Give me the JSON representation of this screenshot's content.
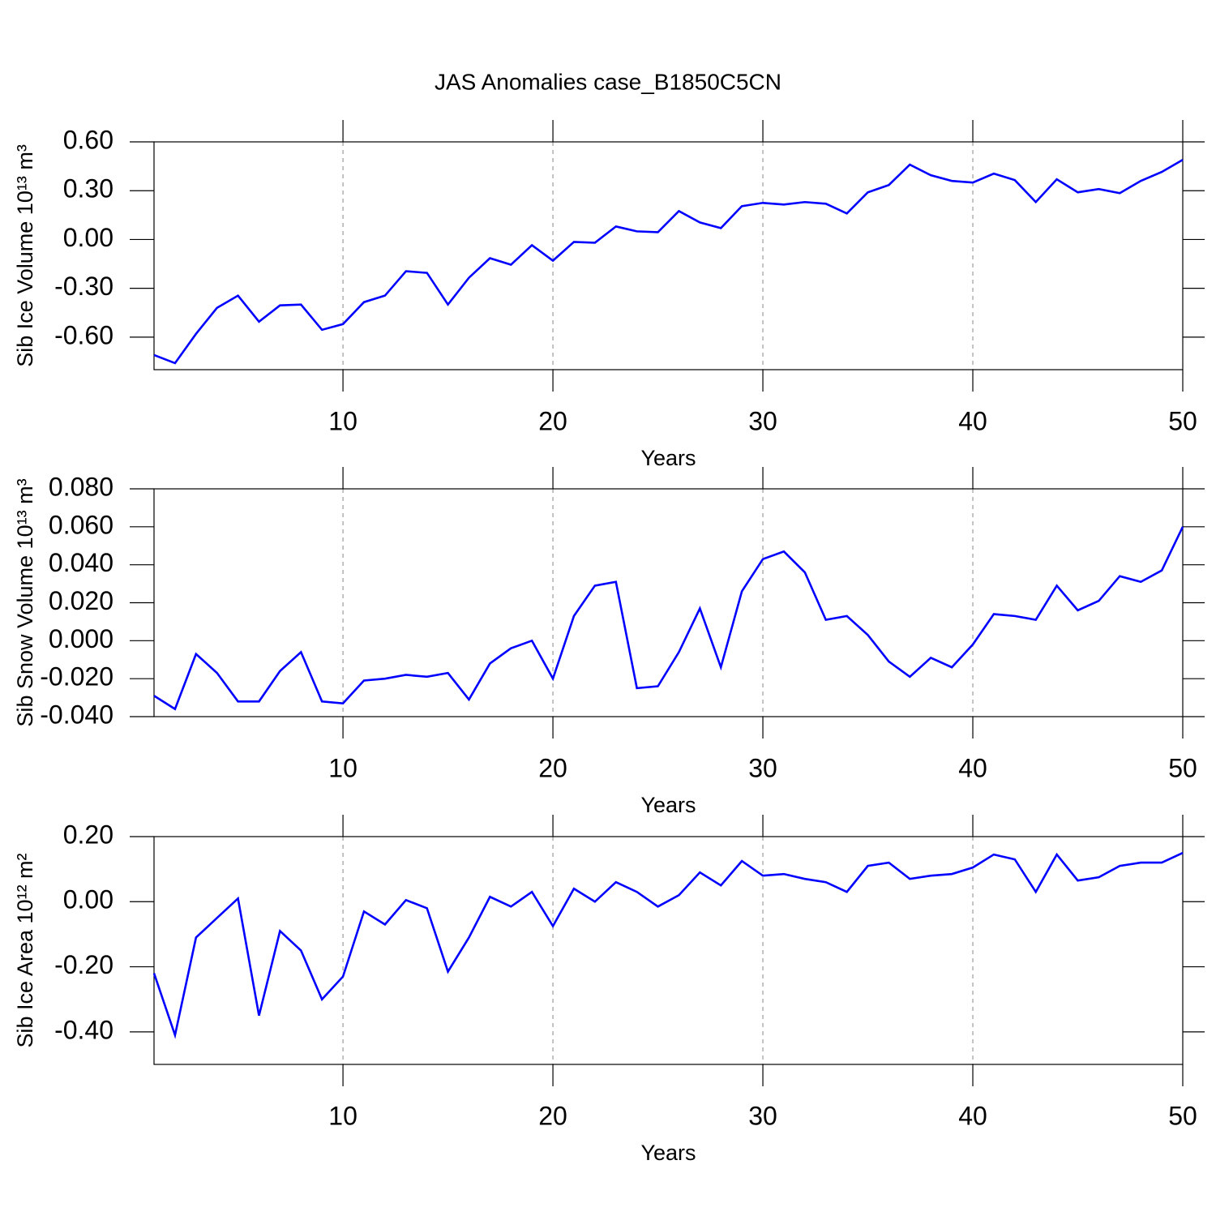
{
  "chart_data": [
    {
      "type": "line",
      "title": "JAS Anomalies case_B1850C5CN",
      "xlabel": "Years",
      "ylabel": "Sib Ice Volume 10¹³ m³",
      "x": [
        1,
        2,
        3,
        4,
        5,
        6,
        7,
        8,
        9,
        10,
        11,
        12,
        13,
        14,
        15,
        16,
        17,
        18,
        19,
        20,
        21,
        22,
        23,
        24,
        25,
        26,
        27,
        28,
        29,
        30,
        31,
        32,
        33,
        34,
        35,
        36,
        37,
        38,
        39,
        40,
        41,
        42,
        43,
        44,
        45,
        46,
        47,
        48,
        49,
        50
      ],
      "values": [
        -0.71,
        -0.76,
        -0.58,
        -0.42,
        -0.345,
        -0.505,
        -0.405,
        -0.4,
        -0.555,
        -0.52,
        -0.385,
        -0.345,
        -0.195,
        -0.205,
        -0.4,
        -0.235,
        -0.115,
        -0.155,
        -0.035,
        -0.13,
        -0.015,
        -0.02,
        0.08,
        0.05,
        0.045,
        0.175,
        0.105,
        0.07,
        0.205,
        0.225,
        0.215,
        0.23,
        0.22,
        0.16,
        0.29,
        0.335,
        0.46,
        0.395,
        0.36,
        0.35,
        0.405,
        0.365,
        0.23,
        0.37,
        0.29,
        0.31,
        0.285,
        0.36,
        0.415,
        0.49
      ],
      "color": "#0000ff",
      "xlim": [
        1,
        50
      ],
      "xticks": [
        10,
        20,
        30,
        40,
        50
      ],
      "ylim": [
        -0.8,
        0.6
      ],
      "yticks": [
        {
          "value": 0.6,
          "label": "0.60"
        },
        {
          "value": 0.3,
          "label": "0.30"
        },
        {
          "value": 0,
          "label": "0.00"
        },
        {
          "value": -0.3,
          "label": "-0.30"
        },
        {
          "value": -0.6,
          "label": "-0.60"
        }
      ],
      "grid": true
    },
    {
      "type": "line",
      "xlabel": "Years",
      "ylabel": "Sib Snow Volume 10¹³ m³",
      "x": [
        1,
        2,
        3,
        4,
        5,
        6,
        7,
        8,
        9,
        10,
        11,
        12,
        13,
        14,
        15,
        16,
        17,
        18,
        19,
        20,
        21,
        22,
        23,
        24,
        25,
        26,
        27,
        28,
        29,
        30,
        31,
        32,
        33,
        34,
        35,
        36,
        37,
        38,
        39,
        40,
        41,
        42,
        43,
        44,
        45,
        46,
        47,
        48,
        49,
        50
      ],
      "values": [
        -0.029,
        -0.036,
        -0.007,
        -0.017,
        -0.032,
        -0.032,
        -0.016,
        -0.006,
        -0.032,
        -0.033,
        -0.021,
        -0.02,
        -0.018,
        -0.019,
        -0.017,
        -0.031,
        -0.012,
        -0.004,
        0.0,
        -0.02,
        0.013,
        0.029,
        0.031,
        -0.025,
        -0.024,
        -0.006,
        0.017,
        -0.014,
        0.026,
        0.043,
        0.047,
        0.036,
        0.011,
        0.013,
        0.003,
        -0.011,
        -0.019,
        -0.009,
        -0.014,
        -0.002,
        0.014,
        0.013,
        0.011,
        0.029,
        0.016,
        0.021,
        0.034,
        0.031,
        0.037,
        0.06
      ],
      "color": "#0000ff",
      "xlim": [
        1,
        50
      ],
      "xticks": [
        10,
        20,
        30,
        40,
        50
      ],
      "ylim": [
        -0.04,
        0.08
      ],
      "yticks": [
        {
          "value": 0.08,
          "label": "0.080"
        },
        {
          "value": 0.06,
          "label": "0.060"
        },
        {
          "value": 0.04,
          "label": "0.040"
        },
        {
          "value": 0.02,
          "label": "0.020"
        },
        {
          "value": 0,
          "label": "0.000"
        },
        {
          "value": -0.02,
          "label": "-0.020"
        },
        {
          "value": -0.04,
          "label": "-0.040"
        }
      ],
      "grid": true
    },
    {
      "type": "line",
      "xlabel": "Years",
      "ylabel": "Sib Ice Area 10¹² m²",
      "x": [
        1,
        2,
        3,
        4,
        5,
        6,
        7,
        8,
        9,
        10,
        11,
        12,
        13,
        14,
        15,
        16,
        17,
        18,
        19,
        20,
        21,
        22,
        23,
        24,
        25,
        26,
        27,
        28,
        29,
        30,
        31,
        32,
        33,
        34,
        35,
        36,
        37,
        38,
        39,
        40,
        41,
        42,
        43,
        44,
        45,
        46,
        47,
        48,
        49,
        50
      ],
      "values": [
        -0.22,
        -0.41,
        -0.11,
        -0.05,
        0.01,
        -0.35,
        -0.09,
        -0.15,
        -0.3,
        -0.23,
        -0.03,
        -0.07,
        0.005,
        -0.02,
        -0.215,
        -0.11,
        0.015,
        -0.015,
        0.03,
        -0.075,
        0.04,
        0.0,
        0.06,
        0.03,
        -0.015,
        0.02,
        0.09,
        0.05,
        0.125,
        0.08,
        0.085,
        0.07,
        0.06,
        0.03,
        0.11,
        0.12,
        0.07,
        0.08,
        0.085,
        0.105,
        0.145,
        0.13,
        0.03,
        0.145,
        0.065,
        0.075,
        0.11,
        0.12,
        0.12,
        0.15
      ],
      "color": "#0000ff",
      "xlim": [
        1,
        50
      ],
      "xticks": [
        10,
        20,
        30,
        40,
        50
      ],
      "ylim": [
        -0.5,
        0.2
      ],
      "yticks": [
        {
          "value": 0.2,
          "label": "0.20"
        },
        {
          "value": 0,
          "label": "0.00"
        },
        {
          "value": -0.2,
          "label": "-0.20"
        },
        {
          "value": -0.4,
          "label": "-0.40"
        }
      ],
      "grid": true
    }
  ]
}
